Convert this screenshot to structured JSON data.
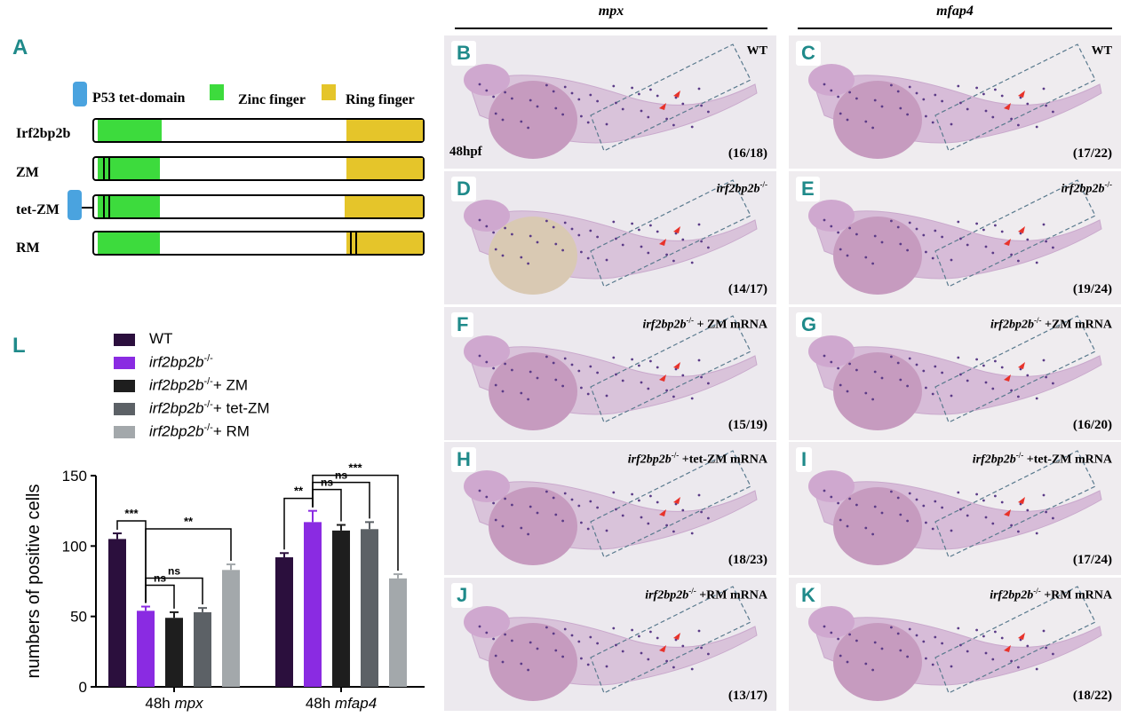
{
  "panel_a": {
    "letter": "A",
    "legend": [
      {
        "label": "P53 tet-domain",
        "color": "#4aa3df"
      },
      {
        "label": "Zinc finger",
        "color": "#3ddb3d"
      },
      {
        "label": "Ring finger",
        "color": "#e5c52a"
      }
    ],
    "constructs": [
      {
        "name": "Irf2bp2b"
      },
      {
        "name": "ZM"
      },
      {
        "name": "tet-ZM"
      },
      {
        "name": "RM"
      }
    ]
  },
  "columns": {
    "left": "mpx",
    "right": "mfap4"
  },
  "photos": [
    {
      "letter": "B",
      "label": "WT",
      "count": "(16/18)",
      "stage": "48hpf"
    },
    {
      "letter": "C",
      "label": "WT",
      "count": "(17/22)"
    },
    {
      "letter": "D",
      "label_italic": "irf2bp2b",
      "label_sup": "-/-",
      "label_rest": "",
      "count": "(14/17)"
    },
    {
      "letter": "E",
      "label_italic": "irf2bp2b",
      "label_sup": "-/-",
      "label_rest": "",
      "count": "(19/24)"
    },
    {
      "letter": "F",
      "label_italic": "irf2bp2b",
      "label_sup": "-/-",
      "label_rest": " + ZM mRNA",
      "count": "(15/19)"
    },
    {
      "letter": "G",
      "label_italic": "irf2bp2b",
      "label_sup": "-/-",
      "label_rest": " +ZM mRNA",
      "count": "(16/20)"
    },
    {
      "letter": "H",
      "label_italic": "irf2bp2b",
      "label_sup": "-/-",
      "label_rest": " +tet-ZM mRNA",
      "count": "(18/23)"
    },
    {
      "letter": "I",
      "label_italic": "irf2bp2b",
      "label_sup": "-/-",
      "label_rest": " +tet-ZM mRNA",
      "count": "(17/24)"
    },
    {
      "letter": "J",
      "label_italic": "irf2bp2b",
      "label_sup": "-/-",
      "label_rest": " +RM mRNA",
      "count": "(13/17)"
    },
    {
      "letter": "K",
      "label_italic": "irf2bp2b",
      "label_sup": "-/-",
      "label_rest": " +RM mRNA",
      "count": "(18/22)"
    }
  ],
  "panel_l": {
    "letter": "L"
  },
  "chart_data": {
    "type": "bar",
    "categories": [
      "48h mpx",
      "48h mfap4"
    ],
    "category_prefix": "48h",
    "category_genes": [
      "mpx",
      "mfap4"
    ],
    "ylabel": "numbers of positive cells",
    "ylim": [
      0,
      150
    ],
    "yticks": [
      0,
      50,
      100,
      150
    ],
    "series": [
      {
        "name": "WT",
        "gene_italic": "",
        "sup": "",
        "suffix": "",
        "color": "#2b0f3d",
        "values": [
          105,
          92
        ],
        "errors": [
          4,
          3
        ]
      },
      {
        "name": "irf2bp2b-/-",
        "gene_italic": "irf2bp2b",
        "sup": "-/-",
        "suffix": "",
        "color": "#8a2be2",
        "values": [
          54,
          117
        ],
        "errors": [
          3,
          8
        ]
      },
      {
        "name": "irf2bp2b-/- + ZM",
        "gene_italic": "irf2bp2b",
        "sup": "-/-",
        "suffix": "+ ZM",
        "color": "#1e1e1e",
        "values": [
          49,
          111
        ],
        "errors": [
          4,
          4
        ]
      },
      {
        "name": "irf2bp2b-/- + tet-ZM",
        "gene_italic": "irf2bp2b",
        "sup": "-/-",
        "suffix": "+ tet-ZM",
        "color": "#5c6166",
        "values": [
          53,
          112
        ],
        "errors": [
          3,
          5
        ]
      },
      {
        "name": "irf2bp2b-/- + RM",
        "gene_italic": "irf2bp2b",
        "sup": "-/-",
        "suffix": "+ RM",
        "color": "#a3a8ab",
        "values": [
          83,
          77
        ],
        "errors": [
          4,
          3
        ]
      }
    ],
    "significance": [
      {
        "group": 0,
        "from": 0,
        "to": 1,
        "label": "***"
      },
      {
        "group": 0,
        "from": 1,
        "to": 2,
        "label": "ns"
      },
      {
        "group": 0,
        "from": 1,
        "to": 3,
        "label": "ns"
      },
      {
        "group": 0,
        "from": 1,
        "to": 4,
        "label": "**"
      },
      {
        "group": 1,
        "from": 0,
        "to": 1,
        "label": "**"
      },
      {
        "group": 1,
        "from": 1,
        "to": 2,
        "label": "ns"
      },
      {
        "group": 1,
        "from": 1,
        "to": 3,
        "label": "ns"
      },
      {
        "group": 1,
        "from": 1,
        "to": 4,
        "label": "***"
      }
    ]
  }
}
